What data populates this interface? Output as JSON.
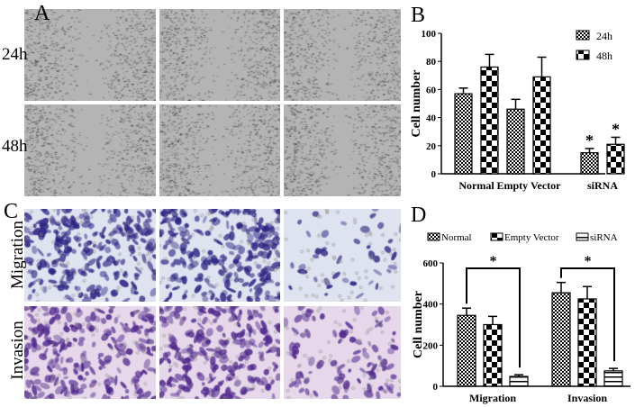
{
  "panel_labels": {
    "a": "A",
    "b": "B",
    "c": "C",
    "d": "D"
  },
  "row_labels": {
    "h24": "24h",
    "h48": "48h",
    "migration": "Migration",
    "invasion": "Invasion"
  },
  "colors": {
    "scratch": "#8a8a8a",
    "migration_stain": "#3b2f8a",
    "invasion_stain": "#5a3590"
  },
  "chart_data": [
    {
      "type": "bar",
      "panel": "B",
      "ylabel": "Cell number",
      "ylim": [
        0,
        100
      ],
      "yticks": [
        0,
        20,
        40,
        60,
        80,
        100
      ],
      "categories": [
        "Normal",
        "Empty Vector",
        "siRNA"
      ],
      "series": [
        {
          "name": "24h",
          "values": [
            57,
            46,
            15
          ],
          "errors": [
            4,
            7,
            3
          ]
        },
        {
          "name": "48h",
          "values": [
            76,
            69,
            21
          ],
          "errors": [
            9,
            14,
            5
          ]
        }
      ],
      "annotations": [
        {
          "text": "*",
          "category": "siRNA",
          "series": "24h"
        },
        {
          "text": "*",
          "category": "siRNA",
          "series": "48h"
        }
      ],
      "legend": "top-right"
    },
    {
      "type": "bar",
      "panel": "D",
      "ylabel": "Cell number",
      "ylim": [
        0,
        600
      ],
      "yticks": [
        0,
        200,
        400,
        600
      ],
      "categories": [
        "Migration",
        "Invasion"
      ],
      "series": [
        {
          "name": "Normal",
          "values": [
            345,
            455
          ],
          "errors": [
            35,
            50
          ]
        },
        {
          "name": "Empty Vector",
          "values": [
            300,
            425
          ],
          "errors": [
            40,
            60
          ]
        },
        {
          "name": "siRNA",
          "values": [
            48,
            75
          ],
          "errors": [
            8,
            12
          ]
        }
      ],
      "annotations": [
        {
          "text": "*",
          "bracket": "Migration Normal vs siRNA"
        },
        {
          "text": "*",
          "bracket": "Invasion Normal vs siRNA"
        }
      ],
      "legend": "top"
    }
  ]
}
